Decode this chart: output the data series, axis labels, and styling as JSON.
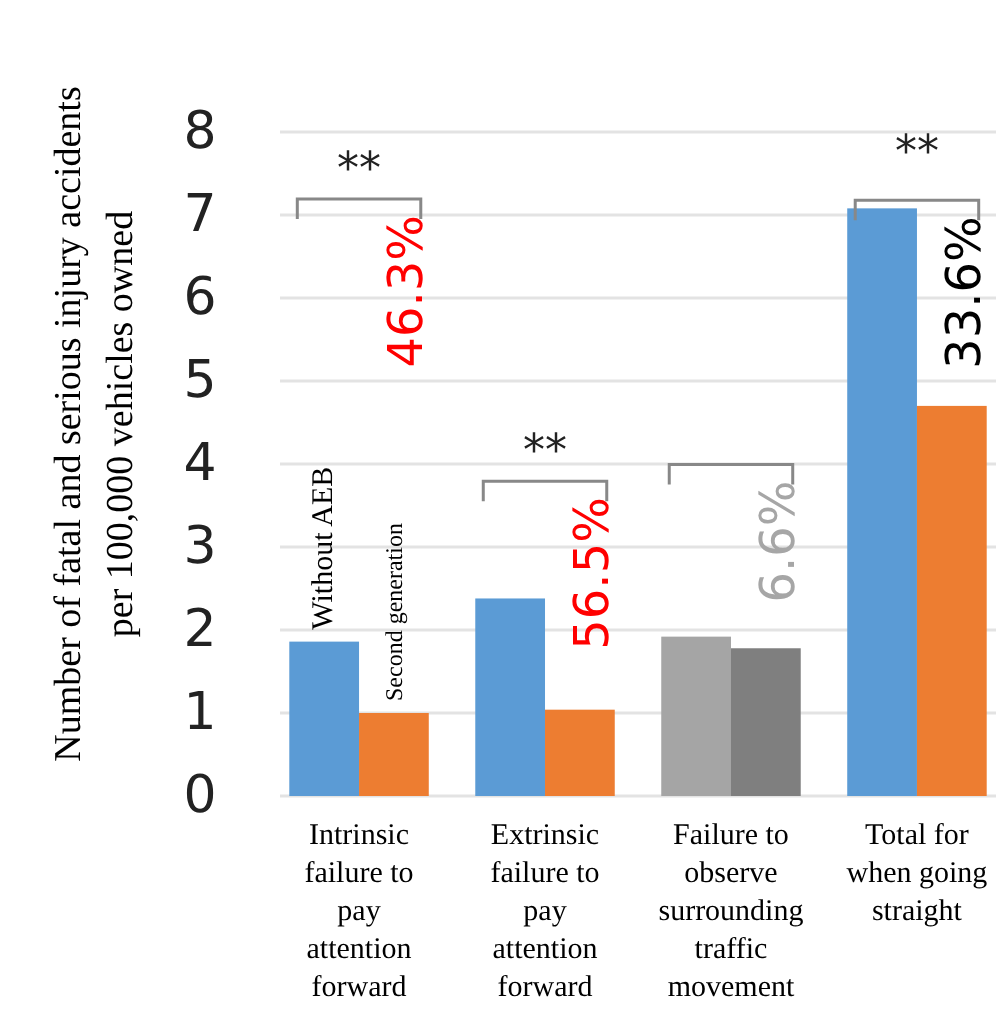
{
  "chart_data": {
    "type": "bar",
    "ylabel": "Number of fatal and serious injury accidents\nper 100,000 vehicles owned",
    "categories": [
      "Intrinsic failure to pay attention forward",
      "Extrinsic failure to pay attention forward",
      "Failure to observe surrounding traffic movement",
      "Total for when going straight"
    ],
    "series": [
      {
        "name": "Without AEB",
        "colors": [
          "#5b9bd5",
          "#5b9bd5",
          "#a5a5a5",
          "#5b9bd5"
        ],
        "values": [
          1.86,
          2.38,
          1.92,
          7.08
        ]
      },
      {
        "name": "Second generation",
        "colors": [
          "#ed7d31",
          "#ed7d31",
          "#7f7f7f",
          "#ed7d31"
        ],
        "values": [
          1.0,
          1.04,
          1.78,
          4.7
        ]
      }
    ],
    "ylim": [
      0,
      8
    ],
    "yticks": [
      0,
      1,
      2,
      3,
      4,
      5,
      6,
      7,
      8
    ],
    "grid": "y",
    "annotations": [
      "46.3%",
      "56.5%",
      "6.6%",
      {
        "text": "33.6%",
        "x": "Total for when going straight",
        "y": 7.08
      },
      "**",
      "**",
      "**"
    ]
  }
}
